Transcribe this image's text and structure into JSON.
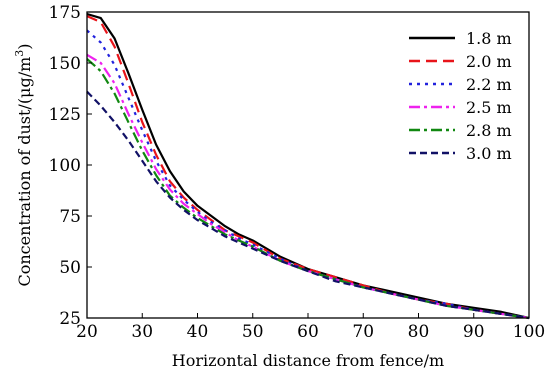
{
  "chart_data": {
    "type": "line",
    "title": "",
    "xlabel": "Horizontal distance from fence/m",
    "ylabel_main": "Concentration of dust/(μg/m",
    "ylabel_sup": "3",
    "ylabel_end": ")",
    "xlim": [
      20,
      100
    ],
    "ylim": [
      25,
      175
    ],
    "xticks": [
      20,
      30,
      40,
      50,
      60,
      70,
      80,
      90,
      100
    ],
    "yticks": [
      25,
      50,
      75,
      100,
      125,
      150,
      175
    ],
    "grid": false,
    "legend_position": "top-right",
    "x": [
      20,
      22.5,
      25,
      27.5,
      30,
      32.5,
      35,
      37.5,
      40,
      42.5,
      45,
      47.5,
      50,
      55,
      60,
      65,
      70,
      75,
      80,
      85,
      90,
      95,
      100
    ],
    "series": [
      {
        "name": "1.8 m",
        "color": "#000000",
        "dash": "solid",
        "values": [
          174,
          172,
          162,
          145,
          127,
          110,
          97,
          87,
          80,
          75,
          70,
          66,
          63,
          55,
          49,
          45,
          41,
          38,
          35,
          32,
          30,
          28,
          25
        ]
      },
      {
        "name": "2.0 m",
        "color": "#e8141a",
        "dash": "dashed",
        "values": [
          173,
          170,
          158,
          140,
          121,
          105,
          92,
          84,
          78,
          73,
          68,
          65,
          62,
          54,
          49,
          45,
          41,
          37,
          34,
          32,
          29,
          27,
          25
        ]
      },
      {
        "name": "2.2 m",
        "color": "#2222dd",
        "dash": "dotted",
        "values": [
          166,
          160,
          149,
          133,
          117,
          102,
          90,
          83,
          77,
          72,
          68,
          64,
          61,
          54,
          48,
          44,
          40,
          37,
          34,
          32,
          29,
          27,
          25
        ]
      },
      {
        "name": "2.5 m",
        "color": "#ee22ee",
        "dash": "dashdot",
        "values": [
          154,
          150,
          140,
          125,
          111,
          98,
          88,
          81,
          76,
          71,
          67,
          63,
          60,
          53,
          48,
          44,
          40,
          37,
          34,
          31,
          29,
          27,
          25
        ]
      },
      {
        "name": "2.8 m",
        "color": "#118811",
        "dash": "dashdot",
        "values": [
          152,
          146,
          135,
          121,
          107,
          95,
          85,
          79,
          74,
          70,
          66,
          63,
          60,
          53,
          48,
          44,
          40,
          37,
          34,
          31,
          29,
          27,
          25
        ]
      },
      {
        "name": "3.0 m",
        "color": "#111166",
        "dash": "shortdash",
        "values": [
          136,
          129,
          121,
          112,
          102,
          92,
          84,
          78,
          73,
          69,
          65,
          62,
          59,
          53,
          48,
          43,
          40,
          37,
          34,
          31,
          29,
          27,
          25
        ]
      }
    ]
  }
}
